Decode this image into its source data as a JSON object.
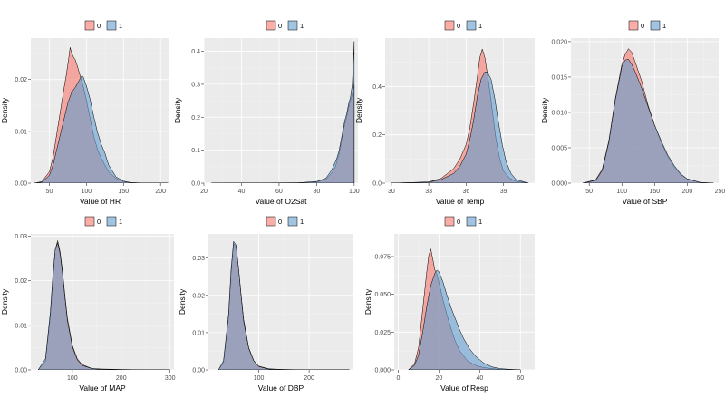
{
  "figure": {
    "fill_colors": {
      "0": "#F8766D",
      "1": "#619CCF"
    },
    "fill_opacity": 0.6,
    "background": "#EBEBEB",
    "grid": true,
    "legend_position": "top"
  },
  "chart_data": [
    {
      "type": "area",
      "xlabel": "Value of HR",
      "ylabel": "Density",
      "xlim": [
        25,
        212
      ],
      "ylim": [
        0,
        0.028
      ],
      "xticks": [
        50,
        100,
        150,
        200
      ],
      "xtick_labels": [
        "50",
        "100",
        "150",
        "200"
      ],
      "yticks": [
        0,
        0.01,
        0.02
      ],
      "ytick_labels": [
        "0.00",
        "0.01",
        "0.02"
      ],
      "legend": [
        "0",
        "1"
      ],
      "series": [
        {
          "name": "0",
          "x": [
            30,
            40,
            50,
            55,
            60,
            65,
            70,
            73,
            76,
            78,
            80,
            82,
            85,
            88,
            92,
            96,
            100,
            105,
            110,
            115,
            120,
            125,
            130,
            140,
            150,
            160,
            180,
            210
          ],
          "y": [
            0,
            0.0003,
            0.0022,
            0.005,
            0.0095,
            0.014,
            0.0185,
            0.021,
            0.024,
            0.0262,
            0.0252,
            0.0245,
            0.0238,
            0.0225,
            0.0205,
            0.0185,
            0.016,
            0.0125,
            0.009,
            0.0065,
            0.0048,
            0.0035,
            0.0022,
            0.0009,
            0.0003,
            0.0001,
            0,
            0
          ]
        },
        {
          "name": "1",
          "x": [
            30,
            40,
            50,
            55,
            60,
            65,
            70,
            75,
            80,
            85,
            90,
            92,
            94,
            96,
            100,
            105,
            110,
            115,
            120,
            125,
            130,
            140,
            150,
            160,
            180,
            210
          ],
          "y": [
            0,
            0.0002,
            0.0015,
            0.0035,
            0.0065,
            0.0095,
            0.0125,
            0.0155,
            0.0175,
            0.0185,
            0.0198,
            0.0203,
            0.0208,
            0.0204,
            0.0188,
            0.0162,
            0.0128,
            0.0098,
            0.0075,
            0.0058,
            0.0035,
            0.0012,
            0.0004,
            0.0001,
            0,
            0
          ]
        }
      ]
    },
    {
      "type": "area",
      "xlabel": "Value of O2Sat",
      "ylabel": "Density",
      "xlim": [
        20,
        102
      ],
      "ylim": [
        0,
        0.44
      ],
      "xticks": [
        20,
        40,
        60,
        80,
        100
      ],
      "xtick_labels": [
        "20",
        "40",
        "60",
        "80",
        "100"
      ],
      "yticks": [
        0,
        0.1,
        0.2,
        0.3,
        0.4
      ],
      "ytick_labels": [
        "0.0",
        "0.1",
        "0.2",
        "0.3",
        "0.4"
      ],
      "legend": [
        "0",
        "1"
      ],
      "series": [
        {
          "name": "0",
          "x": [
            24,
            70,
            80,
            85,
            88,
            90,
            91,
            92,
            93,
            94,
            95,
            96,
            97,
            98,
            99,
            100
          ],
          "y": [
            0,
            0.001,
            0.004,
            0.012,
            0.03,
            0.05,
            0.07,
            0.09,
            0.12,
            0.15,
            0.18,
            0.2,
            0.23,
            0.25,
            0.27,
            0.3
          ]
        },
        {
          "name": "1",
          "x": [
            24,
            70,
            80,
            85,
            88,
            90,
            91,
            92,
            93,
            94,
            95,
            96,
            97,
            98,
            99,
            100
          ],
          "y": [
            0,
            0.001,
            0.005,
            0.015,
            0.04,
            0.065,
            0.08,
            0.1,
            0.13,
            0.16,
            0.19,
            0.21,
            0.24,
            0.26,
            0.3,
            0.43
          ]
        }
      ]
    },
    {
      "type": "area",
      "xlabel": "Value of Temp",
      "ylabel": "Density",
      "xlim": [
        29.5,
        41.5
      ],
      "ylim": [
        0,
        0.6
      ],
      "xticks": [
        30,
        33,
        36,
        39
      ],
      "xtick_labels": [
        "30",
        "33",
        "36",
        "39"
      ],
      "yticks": [
        0,
        0.2,
        0.4
      ],
      "ytick_labels": [
        "0.0",
        "0.2",
        "0.4"
      ],
      "legend": [
        "0",
        "1"
      ],
      "series": [
        {
          "name": "0",
          "x": [
            30,
            33,
            34,
            35,
            35.5,
            36,
            36.3,
            36.6,
            36.9,
            37.1,
            37.3,
            37.5,
            37.8,
            38.1,
            38.4,
            38.7,
            39,
            39.5,
            40,
            41
          ],
          "y": [
            0,
            0.005,
            0.02,
            0.06,
            0.1,
            0.16,
            0.23,
            0.33,
            0.44,
            0.52,
            0.555,
            0.52,
            0.42,
            0.3,
            0.18,
            0.1,
            0.05,
            0.02,
            0.008,
            0
          ]
        },
        {
          "name": "1",
          "x": [
            30,
            33,
            34,
            35,
            35.5,
            36,
            36.3,
            36.6,
            36.9,
            37.2,
            37.5,
            37.7,
            38,
            38.3,
            38.6,
            38.9,
            39.2,
            39.6,
            40,
            41
          ],
          "y": [
            0,
            0.004,
            0.015,
            0.04,
            0.07,
            0.12,
            0.18,
            0.26,
            0.36,
            0.43,
            0.46,
            0.46,
            0.43,
            0.35,
            0.25,
            0.16,
            0.09,
            0.04,
            0.015,
            0
          ]
        }
      ]
    },
    {
      "type": "area",
      "xlabel": "Value of SBP",
      "ylabel": "Density",
      "xlim": [
        22,
        248
      ],
      "ylim": [
        0,
        0.0205
      ],
      "xticks": [
        50,
        100,
        150,
        200,
        250
      ],
      "xtick_labels": [
        "50",
        "100",
        "150",
        "200",
        "250"
      ],
      "yticks": [
        0,
        0.005,
        0.01,
        0.015,
        0.02
      ],
      "ytick_labels": [
        "0.000",
        "0.005",
        "0.010",
        "0.015",
        "0.020"
      ],
      "legend": [
        "0",
        "1"
      ],
      "series": [
        {
          "name": "0",
          "x": [
            40,
            60,
            70,
            80,
            90,
            100,
            105,
            110,
            115,
            120,
            130,
            140,
            150,
            160,
            170,
            180,
            190,
            200,
            220,
            240
          ],
          "y": [
            0,
            0.0005,
            0.002,
            0.006,
            0.012,
            0.0168,
            0.0182,
            0.019,
            0.0185,
            0.0172,
            0.0145,
            0.011,
            0.0082,
            0.0058,
            0.0038,
            0.0023,
            0.0012,
            0.0006,
            0.0001,
            0
          ]
        },
        {
          "name": "1",
          "x": [
            40,
            60,
            70,
            80,
            90,
            100,
            105,
            110,
            115,
            120,
            130,
            140,
            150,
            160,
            170,
            180,
            190,
            200,
            220,
            240
          ],
          "y": [
            0,
            0.0004,
            0.0018,
            0.0058,
            0.0118,
            0.0165,
            0.0174,
            0.0175,
            0.0168,
            0.0158,
            0.0135,
            0.0108,
            0.0082,
            0.006,
            0.004,
            0.0025,
            0.0013,
            0.0006,
            0.0001,
            0
          ]
        }
      ]
    },
    {
      "type": "area",
      "xlabel": "Value of MAP",
      "ylabel": "Density",
      "xlim": [
        15,
        308
      ],
      "ylim": [
        0,
        0.0305
      ],
      "xticks": [
        100,
        200,
        300
      ],
      "xtick_labels": [
        "100",
        "200",
        "300"
      ],
      "yticks": [
        0,
        0.01,
        0.02,
        0.03
      ],
      "ytick_labels": [
        "0.00",
        "0.01",
        "0.02",
        "0.03"
      ],
      "legend": [
        "0",
        "1"
      ],
      "series": [
        {
          "name": "0",
          "x": [
            30,
            45,
            55,
            60,
            65,
            70,
            75,
            80,
            85,
            90,
            100,
            110,
            120,
            140,
            160,
            200,
            250,
            300
          ],
          "y": [
            0,
            0.002,
            0.012,
            0.02,
            0.027,
            0.029,
            0.0265,
            0.022,
            0.0165,
            0.0115,
            0.0055,
            0.0025,
            0.0012,
            0.0003,
            0.0002,
            0.0001,
            0,
            0
          ]
        },
        {
          "name": "1",
          "x": [
            30,
            45,
            55,
            60,
            65,
            70,
            75,
            80,
            85,
            90,
            100,
            110,
            120,
            140,
            160,
            200,
            250,
            300
          ],
          "y": [
            0,
            0.0025,
            0.013,
            0.021,
            0.027,
            0.0285,
            0.026,
            0.0215,
            0.016,
            0.011,
            0.0052,
            0.0023,
            0.001,
            0.0003,
            0.0001,
            0,
            0,
            0
          ]
        }
      ]
    },
    {
      "type": "area",
      "xlabel": "Value of DBP",
      "ylabel": "Density",
      "xlim": [
        0,
        288
      ],
      "ylim": [
        0,
        0.0365
      ],
      "xticks": [
        100,
        200
      ],
      "xtick_labels": [
        "100",
        "200"
      ],
      "yticks": [
        0,
        0.01,
        0.02,
        0.03
      ],
      "ytick_labels": [
        "0.00",
        "0.01",
        "0.02",
        "0.03"
      ],
      "legend": [
        "0",
        "1"
      ],
      "series": [
        {
          "name": "0",
          "x": [
            20,
            30,
            40,
            45,
            50,
            55,
            60,
            65,
            70,
            80,
            90,
            100,
            120,
            150,
            200,
            280
          ],
          "y": [
            0,
            0.002,
            0.014,
            0.026,
            0.034,
            0.033,
            0.027,
            0.02,
            0.0135,
            0.006,
            0.0025,
            0.001,
            0.0003,
            0.0001,
            0,
            0
          ]
        },
        {
          "name": "1",
          "x": [
            20,
            30,
            40,
            45,
            50,
            55,
            60,
            65,
            70,
            80,
            90,
            100,
            120,
            150,
            200,
            280
          ],
          "y": [
            0,
            0.0025,
            0.015,
            0.027,
            0.0345,
            0.0335,
            0.027,
            0.0198,
            0.013,
            0.0058,
            0.0024,
            0.0009,
            0.0002,
            0.0001,
            0,
            0
          ]
        }
      ]
    },
    {
      "type": "area",
      "xlabel": "Value of Resp",
      "ylabel": "Density",
      "xlim": [
        -2,
        67
      ],
      "ylim": [
        0,
        0.09
      ],
      "xticks": [
        0,
        20,
        40,
        60
      ],
      "xtick_labels": [
        "0",
        "20",
        "40",
        "60"
      ],
      "yticks": [
        0,
        0.025,
        0.05,
        0.075
      ],
      "ytick_labels": [
        "0.000",
        "0.025",
        "0.050",
        "0.075"
      ],
      "legend": [
        "0",
        "1"
      ],
      "series": [
        {
          "name": "0",
          "x": [
            5,
            8,
            10,
            12,
            14,
            15,
            16,
            17,
            18,
            19,
            20,
            22,
            24,
            26,
            28,
            30,
            34,
            38,
            42,
            50,
            60
          ],
          "y": [
            0,
            0.004,
            0.015,
            0.04,
            0.065,
            0.076,
            0.08,
            0.073,
            0.066,
            0.063,
            0.058,
            0.046,
            0.036,
            0.027,
            0.019,
            0.013,
            0.006,
            0.003,
            0.0015,
            0.0003,
            0
          ]
        },
        {
          "name": "1",
          "x": [
            5,
            8,
            10,
            12,
            14,
            16,
            18,
            19,
            20,
            22,
            24,
            26,
            28,
            30,
            32,
            35,
            38,
            42,
            46,
            50,
            60
          ],
          "y": [
            0,
            0.003,
            0.01,
            0.025,
            0.042,
            0.056,
            0.064,
            0.066,
            0.065,
            0.058,
            0.049,
            0.041,
            0.034,
            0.027,
            0.021,
            0.014,
            0.009,
            0.0045,
            0.002,
            0.0008,
            0
          ]
        }
      ]
    }
  ]
}
